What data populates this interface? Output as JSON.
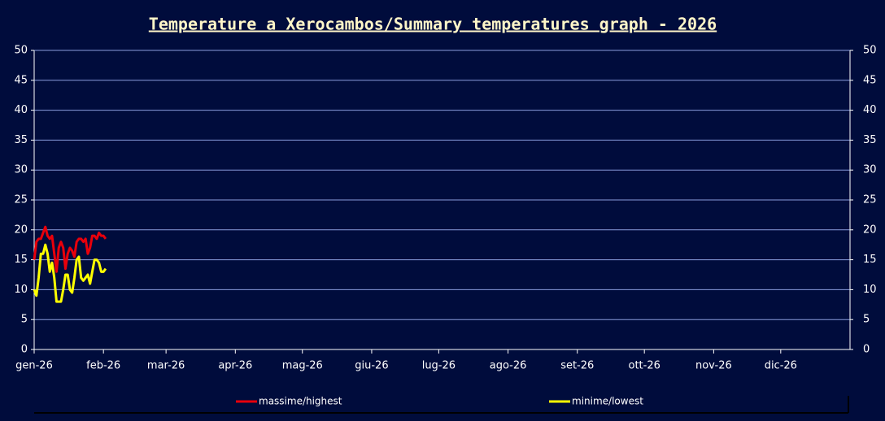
{
  "chart_data": {
    "type": "line",
    "title": "Temperature a Xerocambos/Summary temperatures graph - 2026",
    "x": [
      0,
      1,
      2,
      3,
      4,
      5,
      6,
      7,
      8,
      9,
      10,
      11,
      12,
      13,
      14,
      15,
      16,
      17,
      18,
      19,
      20,
      21,
      22,
      23,
      24,
      25,
      26,
      27,
      28,
      29,
      30,
      31,
      32
    ],
    "xlim": [
      0,
      365
    ],
    "xticks": [
      {
        "value": 0,
        "label": "gen-26"
      },
      {
        "value": 31,
        "label": "feb-26"
      },
      {
        "value": 59,
        "label": "mar-26"
      },
      {
        "value": 90,
        "label": "apr-26"
      },
      {
        "value": 120,
        "label": "mag-26"
      },
      {
        "value": 151,
        "label": "giu-26"
      },
      {
        "value": 181,
        "label": "lug-26"
      },
      {
        "value": 212,
        "label": "ago-26"
      },
      {
        "value": 243,
        "label": "set-26"
      },
      {
        "value": 273,
        "label": "ott-26"
      },
      {
        "value": 304,
        "label": "nov-26"
      },
      {
        "value": 334,
        "label": "dic-26"
      }
    ],
    "ylim": [
      0,
      50
    ],
    "yticks": [
      0,
      5,
      10,
      15,
      20,
      25,
      30,
      35,
      40,
      45,
      50
    ],
    "y2lim": [
      0,
      50
    ],
    "y2ticks": [
      0,
      5,
      10,
      15,
      20,
      25,
      30,
      35,
      40,
      45,
      50
    ],
    "grid": true,
    "legend": "bottom",
    "series": [
      {
        "name": "massime/highest",
        "color": "#e8000b",
        "values": [
          15,
          18,
          18.5,
          18.5,
          19.5,
          20.5,
          19,
          18.5,
          19,
          16,
          13,
          17,
          18,
          17,
          13.5,
          16,
          17,
          16.5,
          15.5,
          18,
          18.5,
          18.5,
          18,
          18.5,
          16,
          17,
          19,
          19,
          18.5,
          19.5,
          19,
          19,
          18.5
        ]
      },
      {
        "name": "minime/lowest",
        "color": "#ffff00",
        "values": [
          10,
          9,
          12,
          16,
          16,
          17.5,
          16,
          13,
          14.5,
          12,
          8,
          8,
          8,
          10,
          12.5,
          12.5,
          10,
          9.5,
          12,
          15,
          15.5,
          12,
          11.5,
          12,
          12.5,
          11,
          13,
          15,
          15,
          14.5,
          13,
          13,
          13.5
        ]
      }
    ]
  }
}
